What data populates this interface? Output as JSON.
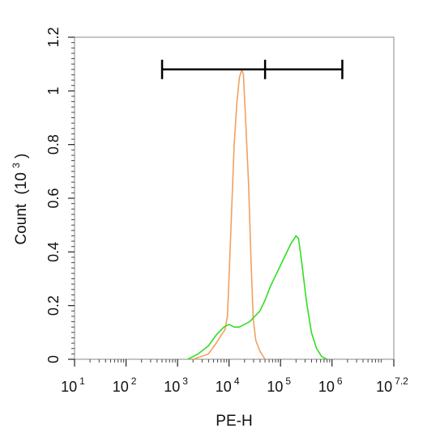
{
  "chart_data": {
    "type": "line",
    "xlabel": "PE-H",
    "ylabel": "Count",
    "ylabel_unit_base": "(10",
    "ylabel_unit_exp": "3",
    "ylabel_unit_close": ")",
    "xscale": "log",
    "xlim_log10": [
      1,
      7.2
    ],
    "ylim": [
      0,
      1.2
    ],
    "x_ticks": [
      {
        "base": "10",
        "exp": "1",
        "value_log10": 1
      },
      {
        "base": "10",
        "exp": "2",
        "value_log10": 2
      },
      {
        "base": "10",
        "exp": "3",
        "value_log10": 3
      },
      {
        "base": "10",
        "exp": "4",
        "value_log10": 4
      },
      {
        "base": "10",
        "exp": "5",
        "value_log10": 5
      },
      {
        "base": "10",
        "exp": "6",
        "value_log10": 6
      },
      {
        "base": "10",
        "exp": "7.2",
        "value_log10": 7.2
      }
    ],
    "y_ticks": [
      {
        "label": "0",
        "value": 0
      },
      {
        "label": "0.2",
        "value": 0.2
      },
      {
        "label": "0.4",
        "value": 0.4
      },
      {
        "label": "0.6",
        "value": 0.6
      },
      {
        "label": "0.8",
        "value": 0.8
      },
      {
        "label": "1",
        "value": 1.0
      },
      {
        "label": "1.2",
        "value": 1.2
      }
    ],
    "grid": false,
    "series": [
      {
        "color": "#f0a060",
        "points": [
          [
            3.3,
            0.0
          ],
          [
            3.6,
            0.02
          ],
          [
            3.75,
            0.06
          ],
          [
            3.85,
            0.09
          ],
          [
            3.92,
            0.11
          ],
          [
            3.97,
            0.16
          ],
          [
            4.0,
            0.3
          ],
          [
            4.05,
            0.55
          ],
          [
            4.1,
            0.8
          ],
          [
            4.15,
            0.95
          ],
          [
            4.2,
            1.05
          ],
          [
            4.25,
            1.08
          ],
          [
            4.28,
            1.06
          ],
          [
            4.32,
            0.9
          ],
          [
            4.38,
            0.65
          ],
          [
            4.43,
            0.35
          ],
          [
            4.47,
            0.15
          ],
          [
            4.52,
            0.07
          ],
          [
            4.6,
            0.03
          ],
          [
            4.7,
            0.0
          ]
        ]
      },
      {
        "color": "#33dd22",
        "points": [
          [
            3.2,
            0.0
          ],
          [
            3.4,
            0.02
          ],
          [
            3.6,
            0.05
          ],
          [
            3.75,
            0.09
          ],
          [
            3.9,
            0.12
          ],
          [
            4.0,
            0.13
          ],
          [
            4.1,
            0.12
          ],
          [
            4.2,
            0.12
          ],
          [
            4.3,
            0.13
          ],
          [
            4.4,
            0.14
          ],
          [
            4.5,
            0.16
          ],
          [
            4.6,
            0.18
          ],
          [
            4.7,
            0.22
          ],
          [
            4.8,
            0.27
          ],
          [
            4.9,
            0.31
          ],
          [
            5.0,
            0.35
          ],
          [
            5.1,
            0.39
          ],
          [
            5.2,
            0.43
          ],
          [
            5.3,
            0.46
          ],
          [
            5.35,
            0.45
          ],
          [
            5.4,
            0.38
          ],
          [
            5.5,
            0.22
          ],
          [
            5.6,
            0.1
          ],
          [
            5.7,
            0.04
          ],
          [
            5.8,
            0.01
          ],
          [
            5.9,
            0.0
          ]
        ]
      }
    ],
    "gate": {
      "x_log10": [
        2.7,
        6.2
      ],
      "divider_log10": 4.7,
      "y": 1.08,
      "color": "#000000"
    }
  }
}
